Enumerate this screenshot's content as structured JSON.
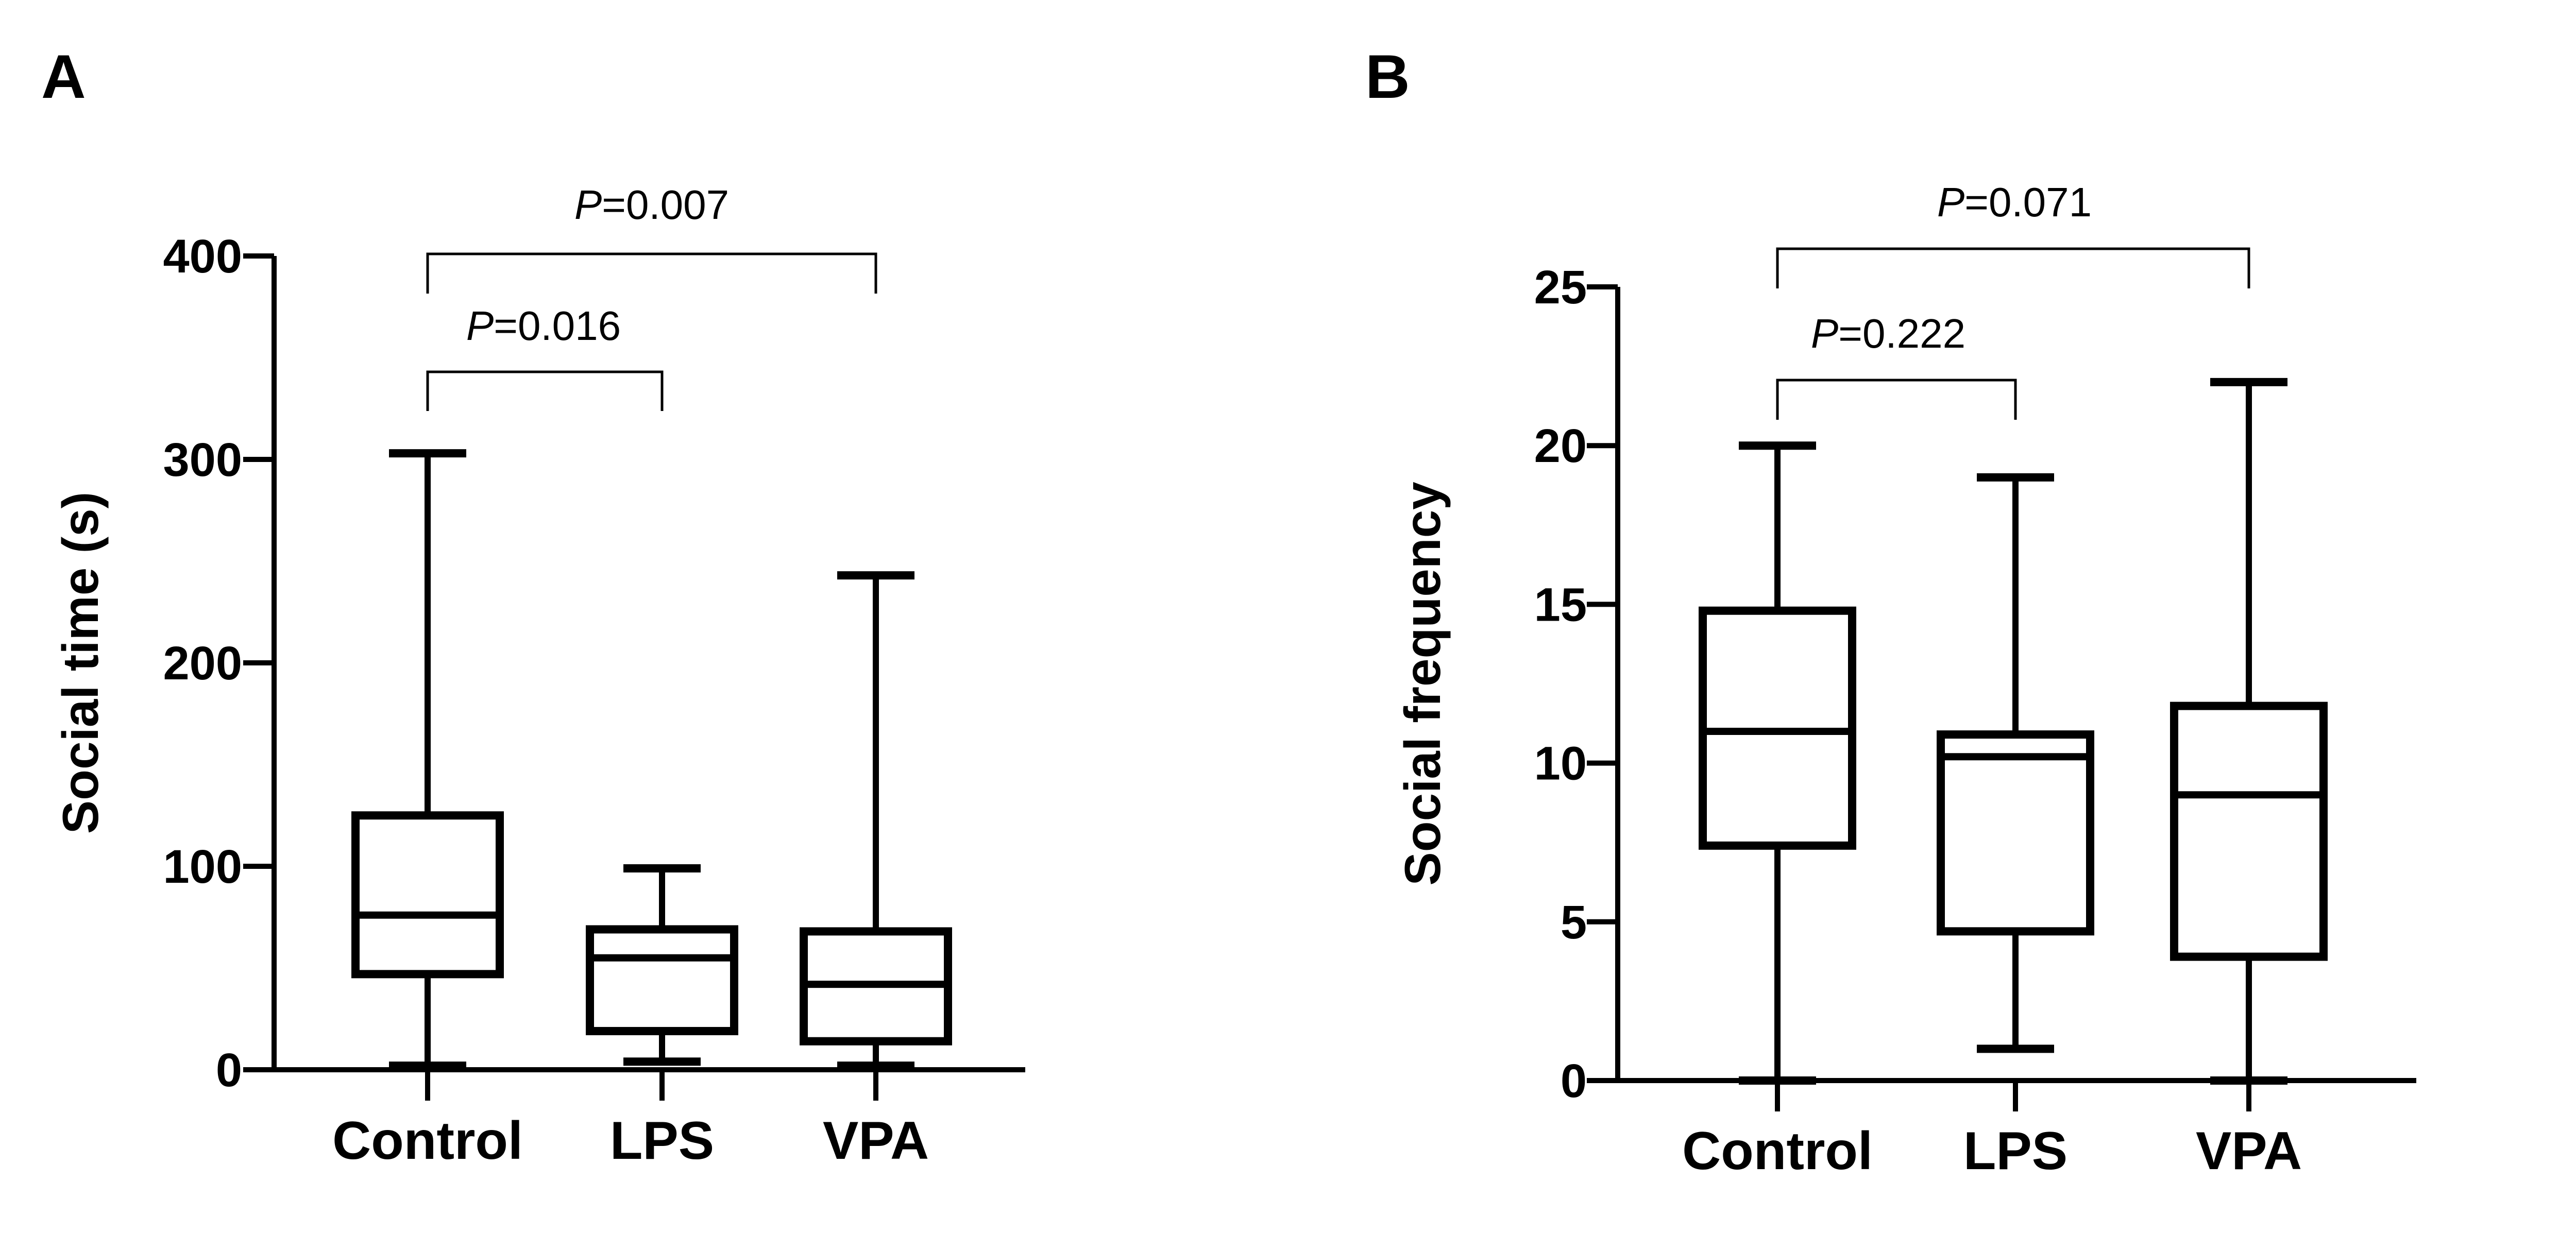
{
  "chart_data": [
    {
      "panel_label": "A",
      "type": "box",
      "ylabel": "Social time (s)",
      "xlabel": "",
      "ylim": [
        0,
        400
      ],
      "yticks": [
        "0",
        "100",
        "200",
        "300",
        "400"
      ],
      "categories": [
        "Control",
        "LPS",
        "VPA"
      ],
      "boxes": [
        {
          "category": "Control",
          "min": 2,
          "q1": 47,
          "median": 76,
          "q3": 125,
          "max": 303
        },
        {
          "category": "LPS",
          "min": 4,
          "q1": 19,
          "median": 55,
          "q3": 69,
          "max": 99
        },
        {
          "category": "VPA",
          "min": 2,
          "q1": 14,
          "median": 42,
          "q3": 68,
          "max": 243
        }
      ],
      "comparisons": [
        {
          "from": "Control",
          "to": "LPS",
          "label_prefix": "P",
          "label_value": "=0.016",
          "level": 1
        },
        {
          "from": "Control",
          "to": "VPA",
          "label_prefix": "P",
          "label_value": "=0.007",
          "level": 2
        }
      ],
      "grid": false
    },
    {
      "panel_label": "B",
      "type": "box",
      "ylabel": "Social frequency",
      "xlabel": "",
      "ylim": [
        0,
        25
      ],
      "yticks": [
        "0",
        "5",
        "10",
        "15",
        "20",
        "25"
      ],
      "categories": [
        "Control",
        "LPS",
        "VPA"
      ],
      "boxes": [
        {
          "category": "Control",
          "min": 0,
          "q1": 7.4,
          "median": 11,
          "q3": 14.8,
          "max": 20
        },
        {
          "category": "LPS",
          "min": 1,
          "q1": 4.7,
          "median": 10.2,
          "q3": 10.9,
          "max": 19
        },
        {
          "category": "VPA",
          "min": 0,
          "q1": 3.9,
          "median": 9,
          "q3": 11.8,
          "max": 22
        }
      ],
      "comparisons": [
        {
          "from": "Control",
          "to": "LPS",
          "label_prefix": "P",
          "label_value": "=0.222",
          "level": 1
        },
        {
          "from": "Control",
          "to": "VPA",
          "label_prefix": "P",
          "label_value": "=0.071",
          "level": 2
        }
      ],
      "grid": false
    }
  ]
}
